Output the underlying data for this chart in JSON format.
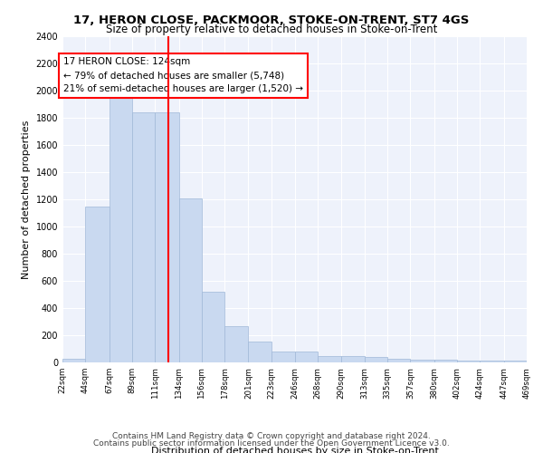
{
  "title1": "17, HERON CLOSE, PACKMOOR, STOKE-ON-TRENT, ST7 4GS",
  "title2": "Size of property relative to detached houses in Stoke-on-Trent",
  "xlabel": "Distribution of detached houses by size in Stoke-on-Trent",
  "ylabel": "Number of detached properties",
  "annotation_line1": "17 HERON CLOSE: 124sqm",
  "annotation_line2": "← 79% of detached houses are smaller (5,748)",
  "annotation_line3": "21% of semi-detached houses are larger (1,520) →",
  "property_size": 124,
  "bar_color": "#c9d9f0",
  "bar_edge_color": "#a0b8d8",
  "vline_color": "red",
  "footer1": "Contains HM Land Registry data © Crown copyright and database right 2024.",
  "footer2": "Contains public sector information licensed under the Open Government Licence v3.0.",
  "bin_edges": [
    22,
    44,
    67,
    89,
    111,
    134,
    156,
    178,
    201,
    223,
    246,
    268,
    290,
    313,
    335,
    357,
    380,
    402,
    424,
    447,
    469
  ],
  "bin_labels": [
    "22sqm",
    "44sqm",
    "67sqm",
    "89sqm",
    "111sqm",
    "134sqm",
    "156sqm",
    "178sqm",
    "201sqm",
    "223sqm",
    "246sqm",
    "268sqm",
    "290sqm",
    "313sqm",
    "335sqm",
    "357sqm",
    "380sqm",
    "402sqm",
    "424sqm",
    "447sqm",
    "469sqm"
  ],
  "counts": [
    30,
    1150,
    1950,
    1840,
    1840,
    1210,
    520,
    265,
    155,
    82,
    82,
    45,
    45,
    40,
    25,
    18,
    18,
    12,
    12,
    12
  ],
  "ylim": [
    0,
    2400
  ],
  "yticks": [
    0,
    200,
    400,
    600,
    800,
    1000,
    1200,
    1400,
    1600,
    1800,
    2000,
    2200,
    2400
  ],
  "plot_bg_color": "#eef2fb"
}
